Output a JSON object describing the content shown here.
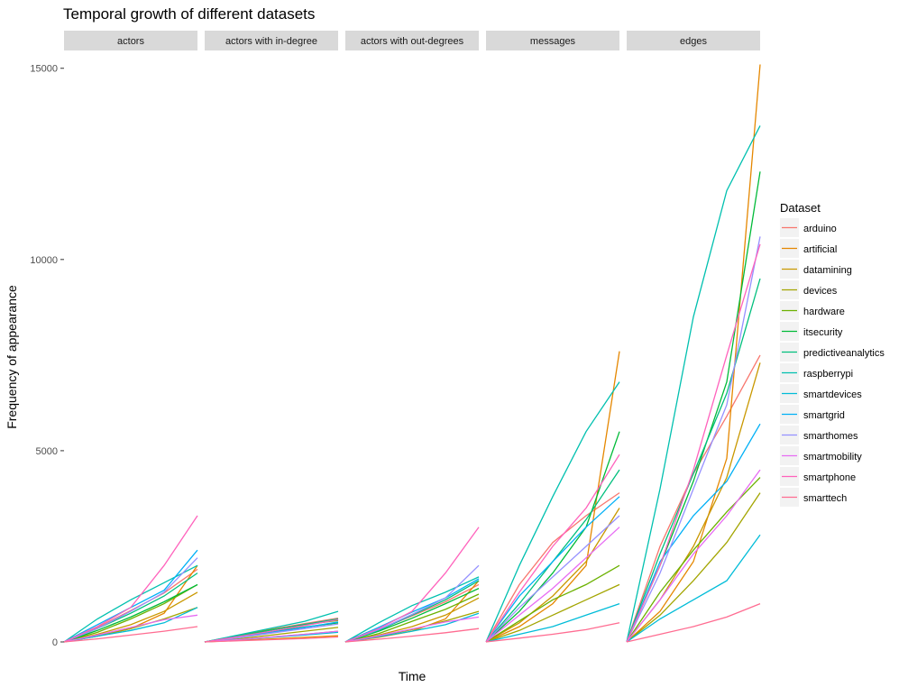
{
  "chart_data": {
    "type": "line",
    "title": "Temporal growth of different datasets",
    "xlabel": "Time",
    "ylabel": "Frequency of appearance",
    "ylim": [
      0,
      15300
    ],
    "yticks": [
      0,
      5000,
      10000,
      15000
    ],
    "grid": false,
    "legend": {
      "title": "Dataset",
      "position": "right"
    },
    "x": [
      0,
      0.25,
      0.5,
      0.75,
      1.0
    ],
    "facets": [
      "actors",
      "actors with in-degree",
      "actors with out-degrees",
      "messages",
      "edges"
    ],
    "series": [
      {
        "name": "arduino",
        "color": "#F8766D",
        "facets": [
          [
            0,
            380,
            820,
            1280,
            1900
          ],
          [
            0,
            170,
            330,
            480,
            620
          ],
          [
            0,
            320,
            680,
            1050,
            1500
          ],
          [
            0,
            1500,
            2600,
            3300,
            3900
          ],
          [
            0,
            2500,
            4400,
            5900,
            7500
          ]
        ]
      },
      {
        "name": "artificial",
        "color": "#E58700",
        "facets": [
          [
            0,
            150,
            350,
            750,
            2000
          ],
          [
            0,
            40,
            80,
            120,
            160
          ],
          [
            0,
            120,
            280,
            600,
            1600
          ],
          [
            0,
            400,
            1000,
            2000,
            7600
          ],
          [
            0,
            800,
            2100,
            4800,
            15100
          ]
        ]
      },
      {
        "name": "datamining",
        "color": "#C99800",
        "facets": [
          [
            0,
            200,
            450,
            800,
            1300
          ],
          [
            0,
            60,
            130,
            200,
            280
          ],
          [
            0,
            180,
            400,
            700,
            1150
          ],
          [
            0,
            500,
            1200,
            2100,
            3500
          ],
          [
            0,
            1100,
            2500,
            4300,
            7300
          ]
        ]
      },
      {
        "name": "devices",
        "color": "#A3A500",
        "facets": [
          [
            0,
            150,
            350,
            600,
            900
          ],
          [
            0,
            80,
            180,
            280,
            380
          ],
          [
            0,
            150,
            320,
            550,
            800
          ],
          [
            0,
            300,
            700,
            1100,
            1500
          ],
          [
            0,
            700,
            1600,
            2600,
            3900
          ]
        ]
      },
      {
        "name": "hardware",
        "color": "#6BB100",
        "facets": [
          [
            0,
            250,
            600,
            1000,
            1500
          ],
          [
            0,
            160,
            320,
            450,
            560
          ],
          [
            0,
            220,
            540,
            850,
            1250
          ],
          [
            0,
            550,
            1100,
            1500,
            2000
          ],
          [
            0,
            1300,
            2400,
            3400,
            4300
          ]
        ]
      },
      {
        "name": "itsecurity",
        "color": "#00BA38",
        "facets": [
          [
            0,
            300,
            650,
            1050,
            1500
          ],
          [
            0,
            130,
            270,
            390,
            500
          ],
          [
            0,
            280,
            620,
            1000,
            1400
          ],
          [
            0,
            800,
            1800,
            3000,
            5500
          ],
          [
            0,
            2000,
            4200,
            6800,
            12300
          ]
        ]
      },
      {
        "name": "predictiveanalytics",
        "color": "#00BF7D",
        "facets": [
          [
            0,
            350,
            750,
            1200,
            1800
          ],
          [
            0,
            150,
            310,
            460,
            600
          ],
          [
            0,
            300,
            700,
            1100,
            1600
          ],
          [
            0,
            1000,
            2100,
            3200,
            4500
          ],
          [
            0,
            2300,
            4400,
            6500,
            9500
          ]
        ]
      },
      {
        "name": "raspberrypi",
        "color": "#00C0AF",
        "facets": [
          [
            0,
            600,
            1100,
            1550,
            2000
          ],
          [
            0,
            180,
            360,
            540,
            800
          ],
          [
            0,
            500,
            950,
            1300,
            1700
          ],
          [
            0,
            2000,
            3800,
            5500,
            6800
          ],
          [
            0,
            4000,
            8500,
            11800,
            13500
          ]
        ]
      },
      {
        "name": "smartdevices",
        "color": "#00BCD8",
        "facets": [
          [
            0,
            150,
            300,
            500,
            900
          ],
          [
            0,
            60,
            120,
            180,
            250
          ],
          [
            0,
            140,
            280,
            450,
            750
          ],
          [
            0,
            200,
            400,
            700,
            1000
          ],
          [
            0,
            600,
            1100,
            1600,
            2800
          ]
        ]
      },
      {
        "name": "smartgrid",
        "color": "#00B0F6",
        "facets": [
          [
            0,
            450,
            900,
            1350,
            2400
          ],
          [
            0,
            130,
            250,
            380,
            520
          ],
          [
            0,
            380,
            780,
            1150,
            1650
          ],
          [
            0,
            1200,
            2100,
            3000,
            3800
          ],
          [
            0,
            2100,
            3300,
            4200,
            5700
          ]
        ]
      },
      {
        "name": "smarthomes",
        "color": "#9590FF",
        "facets": [
          [
            0,
            350,
            800,
            1300,
            2200
          ],
          [
            0,
            110,
            230,
            350,
            470
          ],
          [
            0,
            320,
            720,
            1150,
            2000
          ],
          [
            0,
            900,
            1700,
            2500,
            3300
          ],
          [
            0,
            1800,
            4000,
            6200,
            10600
          ]
        ]
      },
      {
        "name": "smartmobility",
        "color": "#E76BF3",
        "facets": [
          [
            0,
            180,
            380,
            580,
            700
          ],
          [
            0,
            60,
            130,
            200,
            280
          ],
          [
            0,
            160,
            340,
            520,
            650
          ],
          [
            0,
            700,
            1400,
            2200,
            3000
          ],
          [
            0,
            1100,
            2300,
            3300,
            4500
          ]
        ]
      },
      {
        "name": "smartphone",
        "color": "#FF62BC",
        "facets": [
          [
            0,
            400,
            900,
            2000,
            3300
          ],
          [
            0,
            140,
            280,
            430,
            580
          ],
          [
            0,
            350,
            800,
            1800,
            3000
          ],
          [
            0,
            1300,
            2500,
            3500,
            4900
          ],
          [
            0,
            2000,
            4500,
            7500,
            10400
          ]
        ]
      },
      {
        "name": "smarttech",
        "color": "#FF6C91",
        "facets": [
          [
            0,
            80,
            180,
            280,
            400
          ],
          [
            0,
            30,
            60,
            90,
            130
          ],
          [
            0,
            70,
            150,
            240,
            350
          ],
          [
            0,
            100,
            200,
            320,
            500
          ],
          [
            0,
            200,
            400,
            650,
            1000
          ]
        ]
      }
    ]
  }
}
